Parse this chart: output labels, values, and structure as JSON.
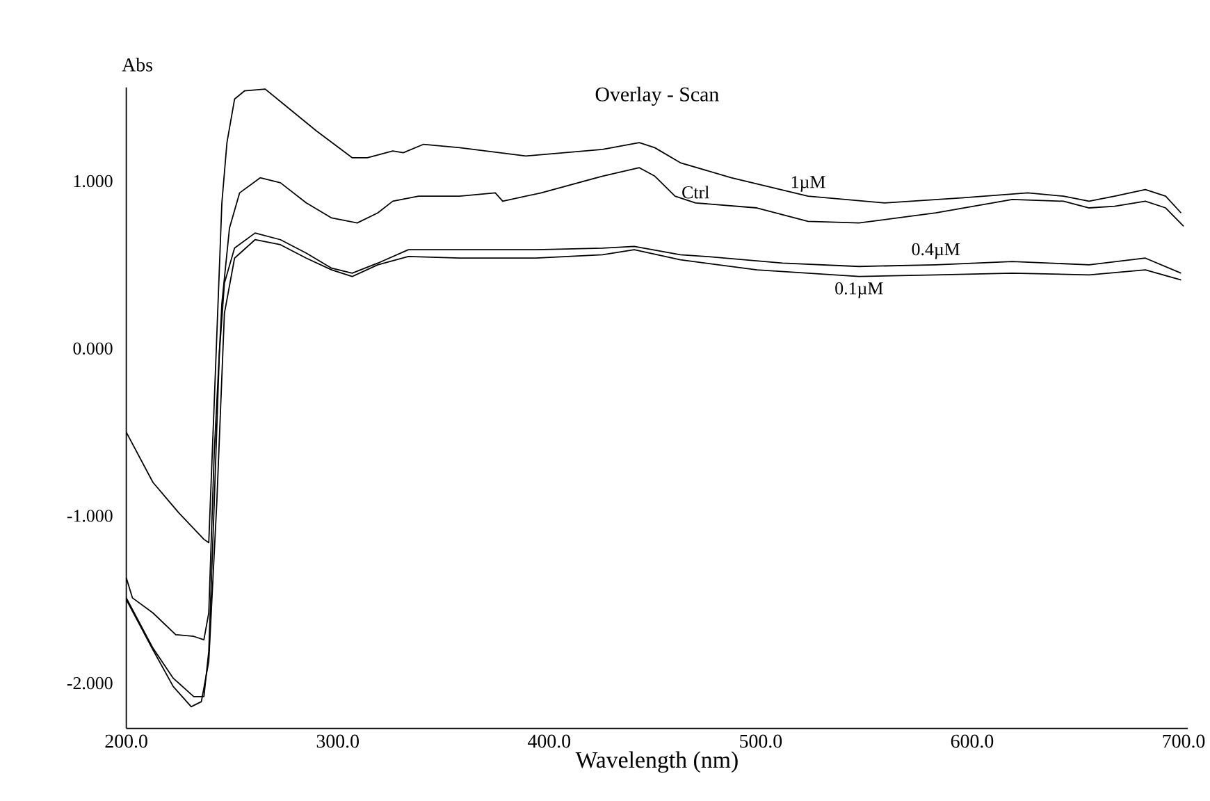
{
  "chart_data": {
    "type": "line",
    "title": "Overlay - Scan",
    "xlabel": "Wavelength (nm)",
    "ylabel": "Abs",
    "xlim": [
      200,
      702
    ],
    "ylim": [
      -2.27,
      1.56
    ],
    "xticks": [
      {
        "value": 200,
        "label": "200.0"
      },
      {
        "value": 300,
        "label": "300.0"
      },
      {
        "value": 400,
        "label": "400.0"
      },
      {
        "value": 500,
        "label": "500.0"
      },
      {
        "value": 600,
        "label": "600.0"
      },
      {
        "value": 700,
        "label": "700.0"
      }
    ],
    "yticks": [
      {
        "value": -2,
        "label": "-2.000"
      },
      {
        "value": -1,
        "label": "-1.000"
      },
      {
        "value": 0,
        "label": "0.000"
      },
      {
        "value": 1,
        "label": "1.000"
      }
    ],
    "grid": false,
    "legend": false,
    "marker": "none",
    "line_style": "solid",
    "series": [
      {
        "name": "1µM",
        "color": "#000000",
        "x": [
          200,
          212.6,
          224.7,
          236.7,
          239,
          241.6,
          245.2,
          247.6,
          251.2,
          256,
          265.7,
          275.4,
          289.9,
          306.8,
          314,
          326,
          331,
          340.6,
          357.6,
          389,
          425.2,
          442.6,
          449.9,
          462,
          486.1,
          522.4,
          558.6,
          594.9,
          626.3,
          643.2,
          655.3,
          667.4,
          681.9,
          691.5,
          698.8
        ],
        "values": [
          -0.5,
          -0.8,
          -0.98,
          -1.14,
          -1.16,
          -0.32,
          0.87,
          1.23,
          1.49,
          1.54,
          1.55,
          1.45,
          1.3,
          1.14,
          1.14,
          1.18,
          1.17,
          1.22,
          1.2,
          1.15,
          1.19,
          1.23,
          1.2,
          1.11,
          1.02,
          0.91,
          0.87,
          0.9,
          0.93,
          0.91,
          0.88,
          0.91,
          0.95,
          0.91,
          0.81
        ]
      },
      {
        "name": "Ctrl",
        "color": "#000000",
        "x": [
          200,
          202.9,
          212.6,
          223.4,
          231.9,
          236.7,
          239,
          241.6,
          245.2,
          248.8,
          253.6,
          263.3,
          272.9,
          285.1,
          297.1,
          309.2,
          318.9,
          326,
          338.2,
          357.6,
          374.5,
          378,
          396.2,
          425.2,
          442.6,
          449.9,
          459.5,
          469.2,
          498.2,
          522.4,
          546.5,
          582.8,
          619,
          643.2,
          655.3,
          667.4,
          681.9,
          691.5,
          700
        ],
        "values": [
          -1.37,
          -1.49,
          -1.58,
          -1.71,
          -1.72,
          -1.74,
          -1.58,
          -0.62,
          0.27,
          0.72,
          0.93,
          1.02,
          0.99,
          0.87,
          0.78,
          0.75,
          0.81,
          0.88,
          0.91,
          0.91,
          0.93,
          0.88,
          0.93,
          1.03,
          1.08,
          1.03,
          0.91,
          0.87,
          0.84,
          0.76,
          0.75,
          0.81,
          0.89,
          0.88,
          0.84,
          0.85,
          0.88,
          0.84,
          0.73
        ]
      },
      {
        "name": "0.4µM",
        "color": "#000000",
        "x": [
          200,
          212.6,
          222.2,
          231.9,
          236.7,
          239,
          241.6,
          244,
          246.4,
          251.2,
          260.9,
          272.9,
          285.1,
          297.1,
          306.8,
          318.9,
          333.4,
          357.6,
          393.8,
          425.2,
          440.2,
          462,
          474,
          510.3,
          546.5,
          582.8,
          619,
          655.3,
          681.9,
          698.8
        ],
        "values": [
          -1.49,
          -1.79,
          -1.97,
          -2.08,
          -2.08,
          -1.81,
          -0.92,
          -0.03,
          0.39,
          0.6,
          0.69,
          0.65,
          0.57,
          0.48,
          0.45,
          0.51,
          0.59,
          0.59,
          0.59,
          0.6,
          0.61,
          0.56,
          0.55,
          0.51,
          0.49,
          0.5,
          0.52,
          0.5,
          0.54,
          0.45
        ]
      },
      {
        "name": "0.1µM",
        "color": "#000000",
        "x": [
          200,
          212.6,
          222.2,
          230.7,
          235.5,
          239,
          242.8,
          246.4,
          251.2,
          260.9,
          272.9,
          285.1,
          297.1,
          306.8,
          318.9,
          333.4,
          357.6,
          393.8,
          425.2,
          440.2,
          462,
          498.2,
          546.5,
          582.8,
          619,
          655.3,
          681.9,
          698.8
        ],
        "values": [
          -1.5,
          -1.8,
          -2.02,
          -2.14,
          -2.11,
          -1.87,
          -0.92,
          0.21,
          0.54,
          0.65,
          0.62,
          0.54,
          0.47,
          0.43,
          0.5,
          0.55,
          0.54,
          0.54,
          0.56,
          0.59,
          0.53,
          0.47,
          0.43,
          0.44,
          0.45,
          0.44,
          0.47,
          0.41
        ]
      }
    ]
  }
}
